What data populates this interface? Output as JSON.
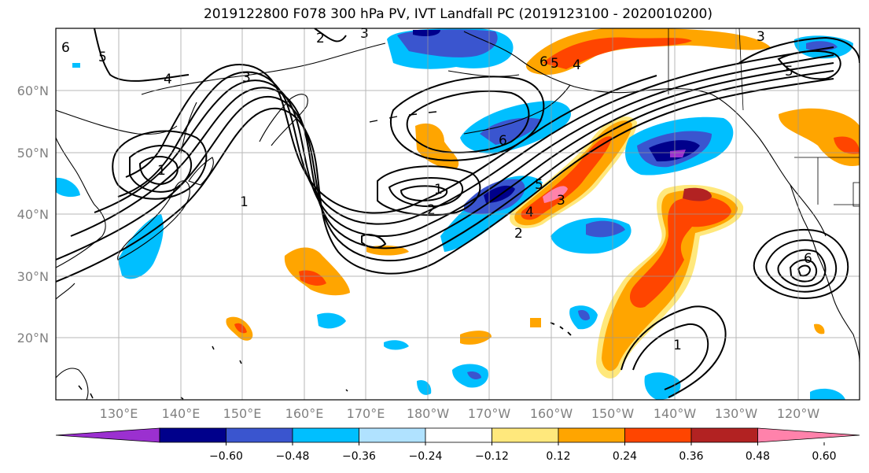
{
  "title": "2019122800 F078 300 hPa PV, IVT Landfall PC (2019123100 - 2020010200)",
  "lat_labels": [
    "60°N",
    "50°N",
    "40°N",
    "30°N",
    "20°N"
  ],
  "lon_labels": [
    "130°E",
    "140°E",
    "150°E",
    "160°E",
    "170°E",
    "180°W",
    "170°W",
    "160°W",
    "150°W",
    "140°W",
    "130°W",
    "120°W"
  ],
  "colorbar": {
    "ticks": [
      "−0.60",
      "−0.48",
      "−0.36",
      "−0.24",
      "−0.12",
      "0.12",
      "0.24",
      "0.36",
      "0.48",
      "0.60"
    ],
    "colors": {
      "neg_extreme": "#9b30d0",
      "neg_060": "#00008b",
      "neg_048": "#3a55cf",
      "neg_036": "#00bfff",
      "neg_024": "#b0e2ff",
      "zero": "#ffffff",
      "pos_012": "#ffe87c",
      "pos_024": "#ffa500",
      "pos_036": "#ff4500",
      "pos_048": "#b22222",
      "pos_extreme": "#ff82ab"
    }
  },
  "contour_labels": [
    "2",
    "4",
    "3",
    "5",
    "6",
    "1",
    "1",
    "2",
    "6",
    "5",
    "4",
    "3",
    "2",
    "5",
    "3",
    "6",
    "5",
    "4",
    "3",
    "6",
    "1",
    "1"
  ]
}
